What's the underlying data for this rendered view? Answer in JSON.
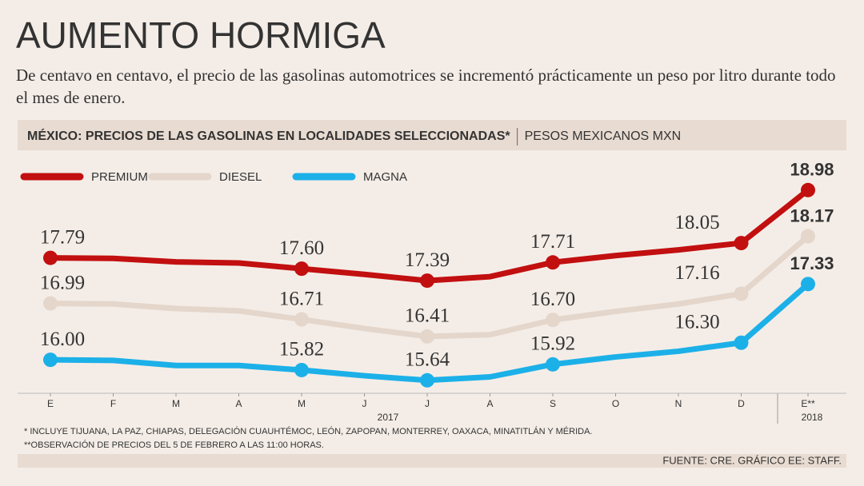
{
  "title": "AUMENTO HORMIGA",
  "subtitle": "De centavo en centavo, el precio de las gasolinas automotrices se incrementó prácticamente un peso por litro durante todo el mes de enero.",
  "chart_data": {
    "type": "line",
    "title": "MÉXICO: PRECIOS DE LAS GASOLINAS EN LOCALIDADES SELECCIONADAS*",
    "unit": "PESOS MEXICANOS MXN",
    "categories": [
      "E",
      "F",
      "M",
      "A",
      "M",
      "J",
      "J",
      "A",
      "S",
      "O",
      "N",
      "D",
      "E**"
    ],
    "periods": [
      "2017",
      "2018"
    ],
    "ylim": [
      15.3,
      19.3
    ],
    "series": [
      {
        "name": "PREMIUM",
        "color": "#c20f10",
        "values": [
          17.79,
          17.78,
          17.72,
          17.7,
          17.6,
          17.5,
          17.39,
          17.46,
          17.71,
          17.83,
          17.93,
          18.05,
          18.98
        ],
        "value_labels": [
          "17.79",
          null,
          null,
          null,
          "17.60",
          null,
          "17.39",
          null,
          "17.71",
          null,
          null,
          "18.05",
          "18.98"
        ]
      },
      {
        "name": "DIESEL",
        "color": "#e4d6cb",
        "values": [
          16.99,
          16.98,
          16.9,
          16.86,
          16.71,
          16.55,
          16.41,
          16.44,
          16.7,
          16.85,
          16.98,
          17.16,
          18.17
        ],
        "value_labels": [
          "16.99",
          null,
          null,
          null,
          "16.71",
          null,
          "16.41",
          null,
          "16.70",
          null,
          null,
          "17.16",
          "18.17"
        ]
      },
      {
        "name": "MAGNA",
        "color": "#1cb0e8",
        "values": [
          16.0,
          15.99,
          15.9,
          15.9,
          15.82,
          15.72,
          15.64,
          15.7,
          15.92,
          16.05,
          16.15,
          16.3,
          17.33
        ],
        "value_labels": [
          "16.00",
          null,
          null,
          null,
          "15.82",
          null,
          "15.64",
          null,
          "15.92",
          null,
          null,
          "16.30",
          "17.33"
        ]
      }
    ],
    "notes": [
      "* INCLUYE TIJUANA, LA PAZ, CHIAPAS, DELEGACIÓN CUAUHTÉMOC, LEÓN, ZAPOPAN, MONTERREY, OAXACA, MINATITLÁN Y MÉRIDA.",
      "**OBSERVACIÓN DE PRECIOS DEL 5 DE FEBRERO A LAS 11:00 HORAS."
    ],
    "source": "FUENTE: CRE. GRÁFICO EE: STAFF."
  }
}
